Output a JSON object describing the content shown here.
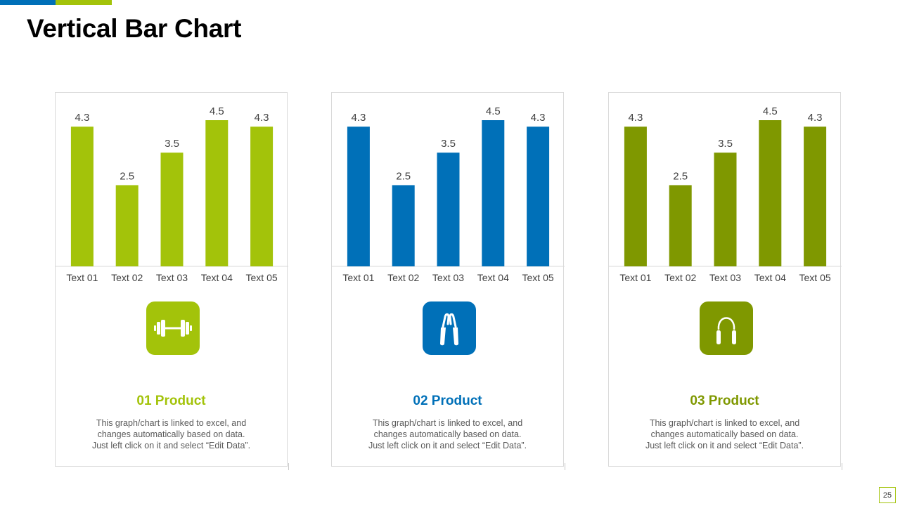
{
  "slide": {
    "title": "Vertical Bar Chart",
    "page_number": "25"
  },
  "colors": {
    "accent_blue": "#0070b8",
    "accent_green": "#a3c30a",
    "dark_green": "#7f9800"
  },
  "cards": [
    {
      "product_title": "01 Product",
      "color": "#a3c30a",
      "icon": "dumbbell-icon",
      "description": [
        "This graph/chart is linked to excel, and",
        "changes automatically based on data.",
        "Just left click on it and select “Edit Data”."
      ]
    },
    {
      "product_title": "02 Product",
      "color": "#0070b8",
      "icon": "hand-grip-icon",
      "description": [
        "This graph/chart is linked to excel, and",
        "changes automatically based on data.",
        "Just left click on it and select “Edit Data”."
      ]
    },
    {
      "product_title": "03 Product",
      "color": "#7f9800",
      "icon": "jump-rope-icon",
      "description": [
        "This graph/chart is linked to excel, and",
        "changes automatically based on data.",
        "Just left click on it and select “Edit Data”."
      ]
    }
  ],
  "chart_data": [
    {
      "type": "bar",
      "title": "",
      "categories": [
        "Text 01",
        "Text 02",
        "Text 03",
        "Text 04",
        "Text 05"
      ],
      "values": [
        4.3,
        2.5,
        3.5,
        4.5,
        4.3
      ],
      "data_labels": [
        "4.3",
        "2.5",
        "3.5",
        "4.5",
        "4.3"
      ],
      "xlabel": "",
      "ylabel": "",
      "ylim": [
        0,
        4.5
      ],
      "grid": false,
      "legend": "none",
      "color": "#a3c30a"
    },
    {
      "type": "bar",
      "title": "",
      "categories": [
        "Text 01",
        "Text 02",
        "Text 03",
        "Text 04",
        "Text 05"
      ],
      "values": [
        4.3,
        2.5,
        3.5,
        4.5,
        4.3
      ],
      "data_labels": [
        "4.3",
        "2.5",
        "3.5",
        "4.5",
        "4.3"
      ],
      "xlabel": "",
      "ylabel": "",
      "ylim": [
        0,
        4.5
      ],
      "grid": false,
      "legend": "none",
      "color": "#0070b8"
    },
    {
      "type": "bar",
      "title": "",
      "categories": [
        "Text 01",
        "Text 02",
        "Text 03",
        "Text 04",
        "Text 05"
      ],
      "values": [
        4.3,
        2.5,
        3.5,
        4.5,
        4.3
      ],
      "data_labels": [
        "4.3",
        "2.5",
        "3.5",
        "4.5",
        "4.3"
      ],
      "xlabel": "",
      "ylabel": "",
      "ylim": [
        0,
        4.5
      ],
      "grid": false,
      "legend": "none",
      "color": "#7f9800"
    }
  ]
}
